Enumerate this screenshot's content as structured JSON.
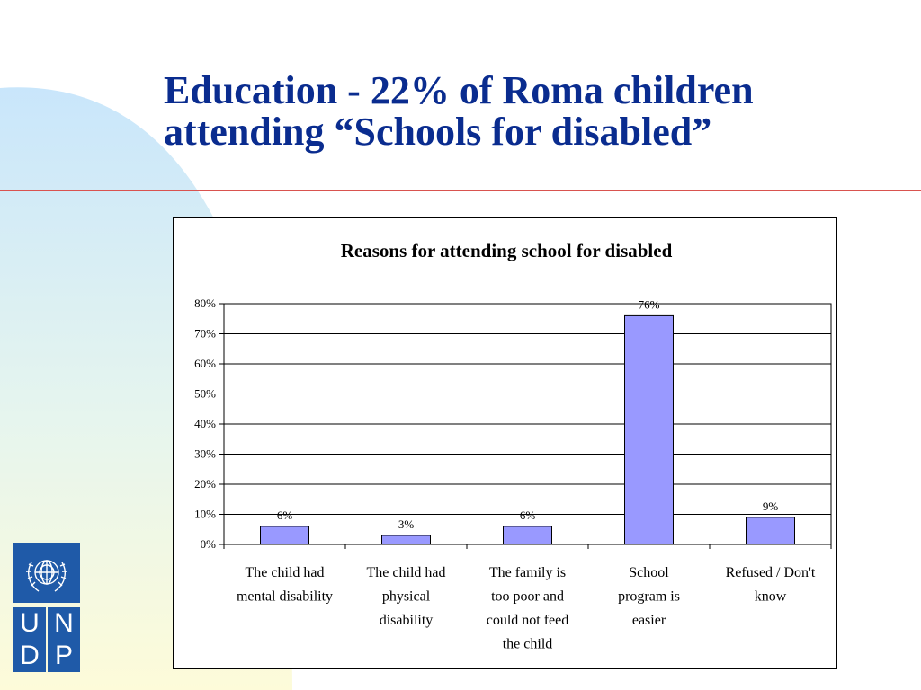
{
  "slide": {
    "title_line1": "Education - 22% of Roma children",
    "title_line2": "attending “Schools for disabled”"
  },
  "colors": {
    "title": "#0a2c8f",
    "bar_fill": "#9999ff",
    "rule": "#d9534f",
    "logo_blue": "#1f5aa8"
  },
  "logo": {
    "letters": [
      "U",
      "N",
      "D",
      "P"
    ],
    "emblem": "un-emblem-icon"
  },
  "chart_data": {
    "type": "bar",
    "title": "Reasons for attending school for disabled",
    "categories": [
      [
        "The child had",
        "mental disability"
      ],
      [
        "The child had",
        "physical",
        "disability"
      ],
      [
        "The family is",
        "too poor and",
        "could not feed",
        "the child"
      ],
      [
        "School",
        "program is",
        "easier"
      ],
      [
        "Refused / Don't",
        "know"
      ]
    ],
    "values": [
      6,
      3,
      6,
      76,
      9
    ],
    "value_labels": [
      "6%",
      "3%",
      "6%",
      "76%",
      "9%"
    ],
    "ylim": [
      0,
      80
    ],
    "yticks": [
      "0%",
      "10%",
      "20%",
      "30%",
      "40%",
      "50%",
      "60%",
      "70%",
      "80%"
    ],
    "grid": true,
    "legend": "none"
  }
}
